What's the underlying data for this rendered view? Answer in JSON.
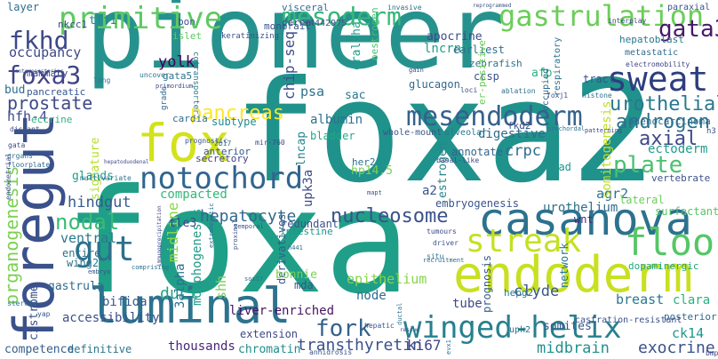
{
  "words": [
    {
      "text": "pioneer",
      "color": "#26928e"
    },
    {
      "text": "foxa2",
      "color": "#20928c"
    },
    {
      "text": "foxa",
      "color": "#1f9f88"
    },
    {
      "text": "foregut",
      "color": "#3b518b"
    },
    {
      "text": "casanova",
      "color": "#2c728e"
    },
    {
      "text": "endoderm",
      "color": "#c8e020"
    },
    {
      "text": "luminal",
      "color": "#2c738e"
    },
    {
      "text": "fox",
      "color": "#d2e21b"
    },
    {
      "text": "notochord",
      "color": "#31668e"
    },
    {
      "text": "winged-helix",
      "color": "#27808e"
    },
    {
      "text": "streak",
      "color": "#c5e021"
    },
    {
      "text": "sweat",
      "color": "#2c3e7f"
    },
    {
      "text": "mesendoderm",
      "color": "#34618d"
    },
    {
      "text": "gastrulation",
      "color": "#6ccd5a"
    },
    {
      "text": "primitive",
      "color": "#5ec962"
    },
    {
      "text": "mesoderm",
      "color": "#35b779"
    },
    {
      "text": "gut",
      "color": "#2d708e"
    },
    {
      "text": "floor",
      "color": "#56c667"
    },
    {
      "text": "plate",
      "color": "#4ac16d"
    },
    {
      "text": "fkhd",
      "color": "#3e4989"
    },
    {
      "text": "foxa3",
      "color": "#414487"
    },
    {
      "text": "gata3",
      "color": "#48186a"
    },
    {
      "text": "urothelial",
      "color": "#2a788e"
    },
    {
      "text": "androgen",
      "color": "#2d718e"
    },
    {
      "text": "axial",
      "color": "#3e4989"
    },
    {
      "text": "ectoderm",
      "color": "#1f9e89"
    },
    {
      "text": "nucleosome",
      "color": "#3b528b"
    },
    {
      "text": "hepatocyte",
      "color": "#31688e"
    },
    {
      "text": "fork",
      "color": "#33628d"
    },
    {
      "text": "nodal",
      "color": "#3aba76"
    },
    {
      "text": "gut",
      "color": "#2d708e"
    },
    {
      "text": "pancreas",
      "color": "#fde725"
    },
    {
      "text": "prostate",
      "color": "#3e4a89"
    },
    {
      "text": "organogenesis",
      "color": "#7ad151"
    },
    {
      "text": "occupancy",
      "color": "#3f4788"
    },
    {
      "text": "yolk",
      "color": "#440154"
    },
    {
      "text": "albumin",
      "color": "#2d718e"
    },
    {
      "text": "bladder",
      "color": "#22a785"
    },
    {
      "text": "transthyretin",
      "color": "#3b528b"
    },
    {
      "text": "hindgut",
      "color": "#365c8d"
    },
    {
      "text": "ventral",
      "color": "#2a788e"
    },
    {
      "text": "tube",
      "color": "#3e4989"
    },
    {
      "text": "duct",
      "color": "#20a486"
    },
    {
      "text": "ki67",
      "color": "#404688"
    },
    {
      "text": "midbrain",
      "color": "#21918c"
    },
    {
      "text": "exocrine",
      "color": "#3b518b"
    },
    {
      "text": "chip-seq",
      "color": "#3d4d8a"
    },
    {
      "text": "psa",
      "color": "#2c728e"
    },
    {
      "text": "sac",
      "color": "#2a788e"
    },
    {
      "text": "crpc",
      "color": "#2f6c8e"
    },
    {
      "text": "agr2",
      "color": "#2c728e"
    },
    {
      "text": "urothelium",
      "color": "#2e6f8e"
    },
    {
      "text": "epithelium",
      "color": "#86d549"
    },
    {
      "text": "liver-enriched",
      "color": "#471365"
    },
    {
      "text": "accessibility",
      "color": "#3c508b"
    },
    {
      "text": "thousands",
      "color": "#482677"
    },
    {
      "text": "chromatin",
      "color": "#228c8d"
    },
    {
      "text": "definitive",
      "color": "#2b758e"
    },
    {
      "text": "competence",
      "color": "#355f8d"
    },
    {
      "text": "cistrome",
      "color": "#3c4f8a"
    },
    {
      "text": "gastrula",
      "color": "#2f6c8e"
    },
    {
      "text": "node",
      "color": "#2f6b8e"
    },
    {
      "text": "mda",
      "color": "#3b528b"
    },
    {
      "text": "clyde",
      "color": "#38588c"
    },
    {
      "text": "ck14",
      "color": "#1f988b"
    },
    {
      "text": "breast",
      "color": "#2a788e"
    },
    {
      "text": "clara",
      "color": "#2ab07f"
    },
    {
      "text": "surfactant",
      "color": "#56c667"
    },
    {
      "text": "dopaminergic",
      "color": "#21a585"
    },
    {
      "text": "posterior",
      "color": "#31678e"
    },
    {
      "text": "hfh-4",
      "color": "#3e4a89"
    },
    {
      "text": "bud",
      "color": "#2d708e"
    },
    {
      "text": "pancreatic",
      "color": "#38588c"
    },
    {
      "text": "eccrine",
      "color": "#2fb47c"
    },
    {
      "text": "glands",
      "color": "#1fa088"
    },
    {
      "text": "signature",
      "color": "#b5de2b"
    },
    {
      "text": "compacted",
      "color": "#35b779"
    },
    {
      "text": "secretory",
      "color": "#404588"
    },
    {
      "text": "anterior",
      "color": "#375a8c"
    },
    {
      "text": "cardia",
      "color": "#2e6f8e"
    },
    {
      "text": "subtype",
      "color": "#23898e"
    },
    {
      "text": "lncap",
      "color": "#25838e"
    },
    {
      "text": "upk3a",
      "color": "#3e4989"
    },
    {
      "text": "her2",
      "color": "#2d708e"
    },
    {
      "text": "hp14.5",
      "color": "#7ad151"
    },
    {
      "text": "a2",
      "color": "#3b528b"
    },
    {
      "text": "estrogen",
      "color": "#25848e"
    },
    {
      "text": "fkd2",
      "color": "#3d4e8a"
    },
    {
      "text": "digestive",
      "color": "#2f6c8e"
    },
    {
      "text": "annotate",
      "color": "#32658e"
    },
    {
      "text": "embryogenesis",
      "color": "#39558c"
    },
    {
      "text": "head",
      "color": "#1f968b"
    },
    {
      "text": "vertebrate",
      "color": "#3b528b"
    },
    {
      "text": "somitogenesis",
      "color": "#c2df23"
    },
    {
      "text": "lateral",
      "color": "#6ccd5a"
    },
    {
      "text": "wnt",
      "color": "#482475"
    },
    {
      "text": "adenocarcinoma",
      "color": "#2e6e8e"
    },
    {
      "text": "midline",
      "color": "#8bd646"
    },
    {
      "text": "morphogenesis",
      "color": "#1f9a8a"
    },
    {
      "text": "3alpha",
      "color": "#2c718e"
    },
    {
      "text": "shh",
      "color": "#7ad151"
    },
    {
      "text": "bifida",
      "color": "#38588c"
    },
    {
      "text": "tle3",
      "color": "#3e4a89"
    },
    {
      "text": "wing2",
      "color": "#2b758e"
    },
    {
      "text": "entire",
      "color": "#2c738e"
    },
    {
      "text": "derivatives",
      "color": "#365d8d"
    },
    {
      "text": "extension",
      "color": "#3e4989"
    },
    {
      "text": "prognosis",
      "color": "#365c8d"
    },
    {
      "text": "network",
      "color": "#2a788e"
    },
    {
      "text": "redundant",
      "color": "#3b528b"
    },
    {
      "text": "intestine",
      "color": "#1f968b"
    },
    {
      "text": "hepg2",
      "color": "#2a778e"
    },
    {
      "text": "somites",
      "color": "#39568c"
    },
    {
      "text": "upk2",
      "color": "#2c738e"
    },
    {
      "text": "castration-resistant",
      "color": "#3b528b"
    },
    {
      "text": "mammary",
      "color": "#3f4788"
    },
    {
      "text": "islet",
      "color": "#5ec962"
    },
    {
      "text": "gata5",
      "color": "#2c728e"
    },
    {
      "text": "tff1",
      "color": "#23898e"
    },
    {
      "text": "nkcc1",
      "color": "#3d4e8a"
    },
    {
      "text": "layer",
      "color": "#2e6d8e"
    },
    {
      "text": "bon",
      "color": "#3b528b"
    },
    {
      "text": "visceral",
      "color": "#2e6f8e"
    },
    {
      "text": "cerna",
      "color": "#404588"
    },
    {
      "text": "s4442975",
      "color": "#3d4d8a"
    },
    {
      "text": "apocrine",
      "color": "#3e4989"
    },
    {
      "text": "lncrna",
      "color": "#1f9e89"
    },
    {
      "text": "monorail",
      "color": "#3b528b"
    },
    {
      "text": "earliest",
      "color": "#2d718e"
    },
    {
      "text": "zebrafish",
      "color": "#2c728e"
    },
    {
      "text": "hepatoblast",
      "color": "#2a788e"
    },
    {
      "text": "paraxial",
      "color": "#3b528b"
    },
    {
      "text": "metastatic",
      "color": "#2f6b8e"
    },
    {
      "text": "afp",
      "color": "#2db27d"
    },
    {
      "text": "ccsp",
      "color": "#3b528b"
    },
    {
      "text": "glucagon",
      "color": "#31688e"
    },
    {
      "text": "eralpha",
      "color": "#1f9e89"
    },
    {
      "text": "oestrogen",
      "color": "#48c16e"
    },
    {
      "text": "er-positive",
      "color": "#6ccd5a"
    },
    {
      "text": "respiratory",
      "color": "#2c738e"
    },
    {
      "text": "tract",
      "color": "#3b528b"
    },
    {
      "text": "electromobility",
      "color": "#414487"
    },
    {
      "text": "interplay",
      "color": "#3e4989"
    },
    {
      "text": "ablation",
      "color": "#2e6e8e"
    },
    {
      "text": "loci",
      "color": "#3b518b"
    },
    {
      "text": "invasive",
      "color": "#2c728e"
    },
    {
      "text": "gain",
      "color": "#3e4989"
    },
    {
      "text": "reprogrammed",
      "color": "#3b528b"
    },
    {
      "text": "histone",
      "color": "#2c728e"
    },
    {
      "text": "foxj1",
      "color": "#3b528b"
    },
    {
      "text": "primordium",
      "color": "#3e4989"
    },
    {
      "text": "uncover",
      "color": "#2c728e"
    },
    {
      "text": "lung",
      "color": "#2c728e"
    },
    {
      "text": "cotransporter",
      "color": "#2a788e"
    },
    {
      "text": "keratinizing",
      "color": "#3b528b"
    },
    {
      "text": "bonnie",
      "color": "#7ad151"
    },
    {
      "text": "grade",
      "color": "#2f6b8e"
    },
    {
      "text": "prognostic",
      "color": "#3b528b"
    },
    {
      "text": "2b17",
      "color": "#2c728e"
    },
    {
      "text": "mir-760",
      "color": "#3e4989"
    },
    {
      "text": "whole-mount",
      "color": "#39558c"
    },
    {
      "text": "alveolar",
      "color": "#2a788e"
    },
    {
      "text": "occupied",
      "color": "#31688e"
    },
    {
      "text": "prechordal",
      "color": "#2c728e"
    },
    {
      "text": "patterning",
      "color": "#3e4989"
    },
    {
      "text": "h3",
      "color": "#3b528b"
    },
    {
      "text": "distant",
      "color": "#3b528b"
    },
    {
      "text": "gata",
      "color": "#3e4989"
    },
    {
      "text": "organs",
      "color": "#2c728e"
    },
    {
      "text": "floorplate",
      "color": "#31688e"
    },
    {
      "text": "endometrial",
      "color": "#3b528b"
    },
    {
      "text": "multivariate",
      "color": "#2c728e"
    },
    {
      "text": "hepatoduodenal",
      "color": "#3e4989"
    },
    {
      "text": "embryo",
      "color": "#3b528b"
    },
    {
      "text": "steroid",
      "color": "#2c728e"
    },
    {
      "text": "yap",
      "color": "#3b528b"
    },
    {
      "text": "tumours",
      "color": "#3e4989"
    },
    {
      "text": "driver",
      "color": "#3b528b"
    },
    {
      "text": "situ",
      "color": "#2c728e"
    },
    {
      "text": "recruitment",
      "color": "#31688e"
    },
    {
      "text": "hepatic",
      "color": "#3b528b"
    },
    {
      "text": "rescue",
      "color": "#3e4989"
    },
    {
      "text": "ductal",
      "color": "#2c728e"
    },
    {
      "text": "anhidrosis",
      "color": "#3b528b"
    },
    {
      "text": "evx1",
      "color": "#2c728e"
    },
    {
      "text": "bmp",
      "color": "#3e4989"
    },
    {
      "text": "sox17",
      "color": "#2c728e"
    },
    {
      "text": "mapt",
      "color": "#3b528b"
    },
    {
      "text": "h441",
      "color": "#2c728e"
    },
    {
      "text": "basal-like",
      "color": "#3e4989"
    },
    {
      "text": "proximal",
      "color": "#3b528b"
    },
    {
      "text": "extrahepatic",
      "color": "#2c728e"
    },
    {
      "text": "temporal",
      "color": "#3b528b"
    },
    {
      "text": "comprising",
      "color": "#2c728e"
    },
    {
      "text": "immunoprecipitation",
      "color": "#3e4989"
    },
    {
      "text": "anteroposterior",
      "color": "#3b528b"
    },
    {
      "text": "prostate-specific",
      "color": "#2c728e"
    },
    {
      "text": "fkhd",
      "color": "#3b528b"
    }
  ]
}
